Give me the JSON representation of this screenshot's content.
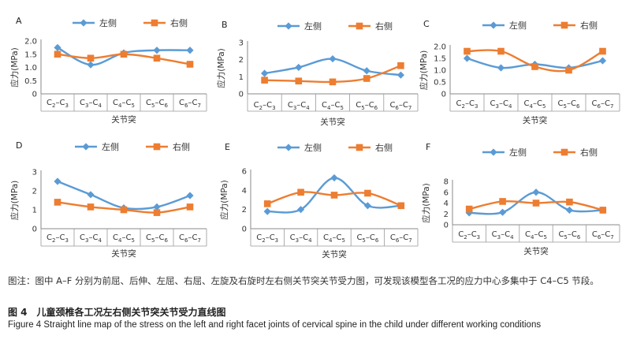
{
  "chart_data": [
    {
      "type": "line",
      "letter": "A",
      "ylabel": "应力(MPa)",
      "xlabel": "关节突",
      "categories": [
        "C2–C3",
        "C3–C4",
        "C4–C5",
        "C5–C6",
        "C6–C7"
      ],
      "ylim": [
        0,
        2.0
      ],
      "yticks": [
        "0",
        "0.5",
        "1.0",
        "1.5",
        "2.0"
      ],
      "legend": "top",
      "series": [
        {
          "name": "左侧",
          "color": "#5b9bd5",
          "marker": "diamond",
          "values": [
            1.75,
            1.1,
            1.55,
            1.65,
            1.65
          ]
        },
        {
          "name": "右侧",
          "color": "#ed7d31",
          "marker": "square",
          "values": [
            1.5,
            1.35,
            1.5,
            1.35,
            1.12
          ]
        }
      ]
    },
    {
      "type": "line",
      "letter": "B",
      "ylabel": "应力(MPa)",
      "xlabel": "关节突",
      "categories": [
        "C2–C3",
        "C3–C4",
        "C4–C5",
        "C5–C6",
        "C6–C7"
      ],
      "ylim": [
        0,
        3
      ],
      "yticks": [
        "0",
        "1",
        "2",
        "3"
      ],
      "legend": "top",
      "series": [
        {
          "name": "左侧",
          "color": "#5b9bd5",
          "marker": "diamond",
          "values": [
            1.2,
            1.55,
            2.05,
            1.35,
            1.1
          ]
        },
        {
          "name": "右侧",
          "color": "#ed7d31",
          "marker": "square",
          "values": [
            0.8,
            0.75,
            0.7,
            0.9,
            1.65
          ]
        }
      ]
    },
    {
      "type": "line",
      "letter": "C",
      "ylabel": "应力(MPa)",
      "xlabel": "关节突",
      "categories": [
        "C2–C3",
        "C3–C4",
        "C4–C5",
        "C5–C6",
        "C6–C7"
      ],
      "ylim": [
        0,
        2.0
      ],
      "yticks": [
        "0",
        "0.5",
        "1.0",
        "1.5",
        "2.0"
      ],
      "legend": "top",
      "series": [
        {
          "name": "左侧",
          "color": "#5b9bd5",
          "marker": "diamond",
          "values": [
            1.5,
            1.1,
            1.25,
            1.1,
            1.4
          ]
        },
        {
          "name": "右侧",
          "color": "#ed7d31",
          "marker": "square",
          "values": [
            1.8,
            1.8,
            1.15,
            1.0,
            1.8
          ]
        }
      ]
    },
    {
      "type": "line",
      "letter": "D",
      "ylabel": "应力(MPa)",
      "xlabel": "关节突",
      "categories": [
        "C2–C3",
        "C3–C4",
        "C4–C5",
        "C5–C6",
        "C6–C7"
      ],
      "ylim": [
        0,
        3
      ],
      "yticks": [
        "0",
        "1",
        "2",
        "3"
      ],
      "legend": "top",
      "series": [
        {
          "name": "左侧",
          "color": "#5b9bd5",
          "marker": "diamond",
          "values": [
            2.5,
            1.8,
            1.1,
            1.15,
            1.75
          ]
        },
        {
          "name": "右侧",
          "color": "#ed7d31",
          "marker": "square",
          "values": [
            1.4,
            1.15,
            1.0,
            0.85,
            1.15
          ]
        }
      ]
    },
    {
      "type": "line",
      "letter": "E",
      "ylabel": "应力(MPa)",
      "xlabel": "关节突",
      "categories": [
        "C2–C3",
        "C3–C4",
        "C4–C5",
        "C5–C6",
        "C6–C7"
      ],
      "ylim": [
        0,
        6
      ],
      "yticks": [
        "0",
        "2",
        "4",
        "6"
      ],
      "legend": "top",
      "series": [
        {
          "name": "左侧",
          "color": "#5b9bd5",
          "marker": "diamond",
          "values": [
            1.8,
            2.0,
            5.3,
            2.4,
            2.4
          ]
        },
        {
          "name": "右侧",
          "color": "#ed7d31",
          "marker": "square",
          "values": [
            2.6,
            3.8,
            3.5,
            3.7,
            2.4
          ]
        }
      ]
    },
    {
      "type": "line",
      "letter": "F",
      "ylabel": "应力(MPa)",
      "xlabel": "关节突",
      "categories": [
        "C2–C3",
        "C3–C4",
        "C4–C5",
        "C5–C6",
        "C6–C7"
      ],
      "ylim": [
        0,
        8
      ],
      "yticks": [
        "0",
        "2",
        "4",
        "6",
        "8"
      ],
      "legend": "top",
      "series": [
        {
          "name": "左侧",
          "color": "#5b9bd5",
          "marker": "diamond",
          "values": [
            2.2,
            2.3,
            6.0,
            2.7,
            2.7
          ]
        },
        {
          "name": "右侧",
          "color": "#ed7d31",
          "marker": "square",
          "values": [
            2.9,
            4.3,
            4.0,
            4.2,
            2.7
          ]
        }
      ]
    }
  ],
  "caption": {
    "note": "图注：图中 A–F 分别为前屈、后伸、左屈、右屈、左旋及右旋时左右侧关节突关节受力图，可发现该模型各工况的应力中心多集中于 C4–C5 节段。",
    "title_cn": "图 4　儿童颈椎各工况左右侧关节突关节受力直线图",
    "title_en": "Figure 4    Straight line map of the stress on the left and right facet joints of cervical spine in the child under different working conditions"
  }
}
